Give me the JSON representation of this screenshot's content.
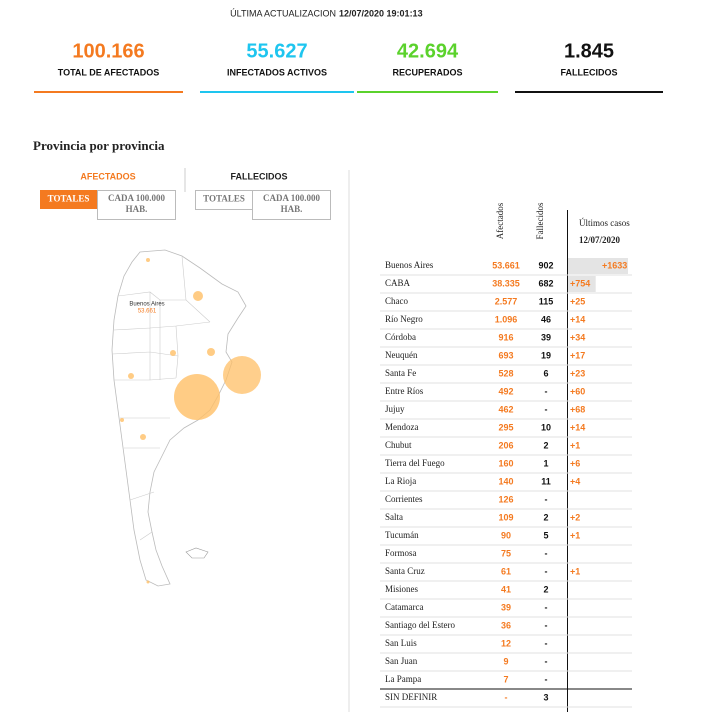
{
  "header": {
    "label": "ÚLTIMA ACTUALIZACION",
    "date": "12/07/2020 19:01:13"
  },
  "kpis": [
    {
      "value": "100.166",
      "label": "TOTAL DE AFECTADOS",
      "color": "#f47a20"
    },
    {
      "value": "55.627",
      "label": "INFECTADOS ACTIVOS",
      "color": "#1ec5ef"
    },
    {
      "value": "42.694",
      "label": "RECUPERADOS",
      "color": "#5bd22c"
    },
    {
      "value": "1.845",
      "label": "FALLECIDOS",
      "color": "#111111"
    }
  ],
  "section_title": "Provincia por provincia",
  "tabs": [
    {
      "label": "AFECTADOS",
      "buttons": [
        "TOTALES",
        "CADA 100.000 HAB."
      ]
    },
    {
      "label": "FALLECIDOS",
      "buttons": [
        "TOTALES",
        "CADA 100.000 HAB."
      ]
    }
  ],
  "map": {
    "label": "Buenos Aires",
    "value": "53.661"
  },
  "table": {
    "headers": [
      "Afectados",
      "Fallecidos",
      "Últimos casos",
      "12/07/2020"
    ],
    "rows": [
      [
        "Buenos Aires",
        "53.661",
        "902",
        "+1633"
      ],
      [
        "CABA",
        "38.335",
        "682",
        "+754"
      ],
      [
        "Chaco",
        "2.577",
        "115",
        "+25"
      ],
      [
        "Río Negro",
        "1.096",
        "46",
        "+14"
      ],
      [
        "Córdoba",
        "916",
        "39",
        "+34"
      ],
      [
        "Neuquén",
        "693",
        "19",
        "+17"
      ],
      [
        "Santa Fe",
        "528",
        "6",
        "+23"
      ],
      [
        "Entre Ríos",
        "492",
        "-",
        "+60"
      ],
      [
        "Jujuy",
        "462",
        "-",
        "+68"
      ],
      [
        "Mendoza",
        "295",
        "10",
        "+14"
      ],
      [
        "Chubut",
        "206",
        "2",
        "+1"
      ],
      [
        "Tierra del Fuego",
        "160",
        "1",
        "+6"
      ],
      [
        "La Rioja",
        "140",
        "11",
        "+4"
      ],
      [
        "Corrientes",
        "126",
        "-",
        null
      ],
      [
        "Salta",
        "109",
        "2",
        "+2"
      ],
      [
        "Tucumán",
        "90",
        "5",
        "+1"
      ],
      [
        "Formosa",
        "75",
        "-",
        null
      ],
      [
        "Santa Cruz",
        "61",
        "-",
        "+1"
      ],
      [
        "Misiones",
        "41",
        "2",
        null
      ],
      [
        "Catamarca",
        "39",
        "-",
        null
      ],
      [
        "Santiago del Estero",
        "36",
        "-",
        null
      ],
      [
        "San Luis",
        "12",
        "-",
        null
      ],
      [
        "San Juan",
        "9",
        "-",
        null
      ],
      [
        "La Pampa",
        "7",
        "-",
        null
      ],
      [
        "SIN DEFINIR",
        "-",
        "3",
        null
      ]
    ]
  }
}
